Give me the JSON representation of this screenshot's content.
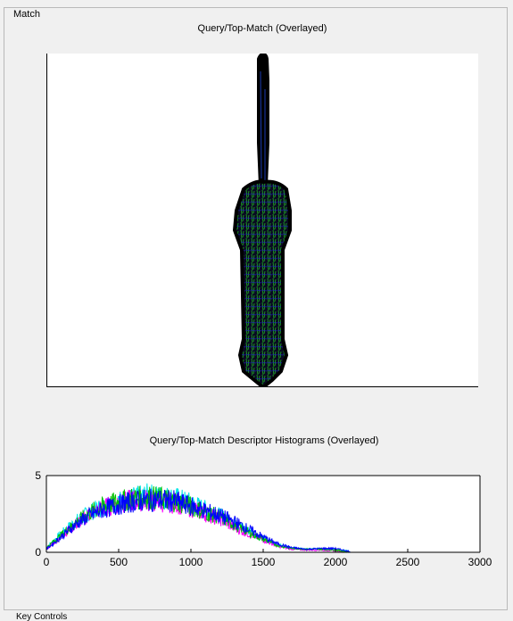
{
  "panel": {
    "title": "Match",
    "bottom_label": "Key Controls"
  },
  "top_plot": {
    "title": "Query/Top-Match (Overlayed)"
  },
  "histogram": {
    "title": "Query/Top-Match Descriptor Histograms (Overlayed)"
  },
  "chart_data": {
    "type": "line",
    "title": "Query/Top-Match Descriptor Histograms (Overlayed)",
    "xlim": [
      0,
      3000
    ],
    "ylim": [
      0,
      5
    ],
    "x_ticks": [
      0,
      500,
      1000,
      1500,
      2000,
      2500,
      3000
    ],
    "y_ticks": [
      0,
      5
    ],
    "grid": false,
    "series": [
      {
        "color": "#00e5e5",
        "x": [
          0,
          100,
          200,
          300,
          400,
          500,
          600,
          700,
          800,
          900,
          1000,
          1100,
          1200,
          1300,
          1400,
          1500,
          1600,
          1700,
          1800,
          1900,
          2000,
          2100
        ],
        "y": [
          0.3,
          1.2,
          2.0,
          2.6,
          3.0,
          3.3,
          3.5,
          3.7,
          3.6,
          3.5,
          3.2,
          2.8,
          2.4,
          1.9,
          1.4,
          0.9,
          0.5,
          0.3,
          0.2,
          0.25,
          0.2,
          0.05
        ]
      },
      {
        "color": "#ff00ff",
        "x": [
          0,
          100,
          200,
          300,
          400,
          500,
          600,
          700,
          800,
          900,
          1000,
          1100,
          1200,
          1300,
          1400,
          1500,
          1600,
          1700,
          1800,
          1900,
          2000,
          2100
        ],
        "y": [
          0.2,
          1.0,
          1.8,
          2.5,
          2.9,
          3.2,
          3.4,
          3.4,
          3.3,
          3.2,
          2.9,
          2.5,
          2.2,
          1.6,
          1.2,
          0.8,
          0.4,
          0.2,
          0.15,
          0.15,
          0.1,
          0.0
        ]
      },
      {
        "color": "#00c000",
        "x": [
          0,
          100,
          200,
          300,
          400,
          500,
          600,
          700,
          800,
          900,
          1000,
          1100,
          1200,
          1300,
          1400,
          1500,
          1600,
          1700,
          1800,
          1900,
          2000,
          2100
        ],
        "y": [
          0.3,
          1.1,
          1.9,
          2.6,
          3.0,
          3.3,
          3.5,
          3.6,
          3.5,
          3.3,
          3.0,
          2.6,
          2.3,
          1.8,
          1.3,
          0.85,
          0.45,
          0.25,
          0.2,
          0.2,
          0.15,
          0.0
        ]
      },
      {
        "color": "#0000ff",
        "x": [
          0,
          100,
          200,
          300,
          400,
          500,
          600,
          700,
          800,
          900,
          1000,
          1100,
          1200,
          1300,
          1400,
          1500,
          1600,
          1700,
          1800,
          1900,
          2000,
          2100
        ],
        "y": [
          0.2,
          1.0,
          1.8,
          2.4,
          2.8,
          3.1,
          3.3,
          3.4,
          3.4,
          3.3,
          3.0,
          2.7,
          2.4,
          2.0,
          1.5,
          1.0,
          0.55,
          0.3,
          0.2,
          0.25,
          0.25,
          0.05
        ]
      }
    ]
  }
}
